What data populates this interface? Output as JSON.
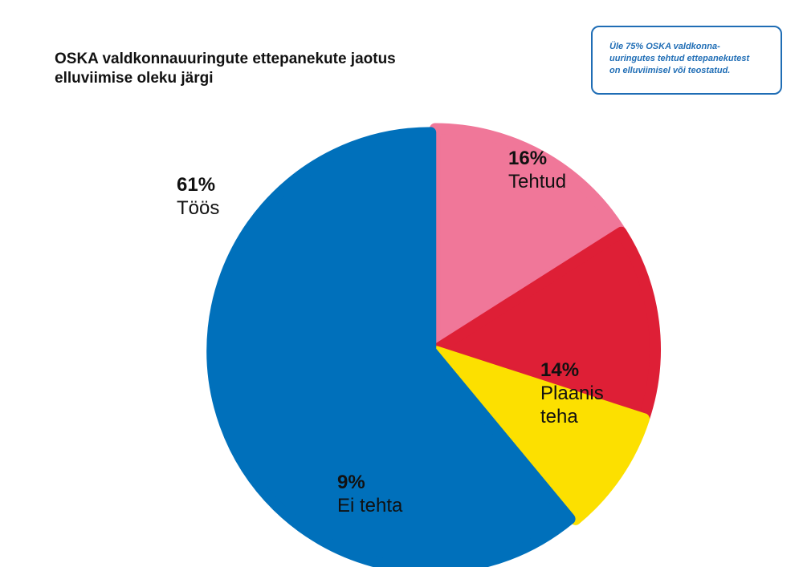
{
  "title_lines": [
    "OSKA valdkonnauuringute ettepanekute jaotus",
    "elluviimise oleku järgi"
  ],
  "note_lines": [
    "Üle 75% OSKA valdkonna-",
    "uuringutes tehtud ettepanekutest",
    "on elluviimisel või teostatud."
  ],
  "chart_data": {
    "type": "pie",
    "title": "OSKA valdkonnauuringute ettepanekute jaotus elluviimise oleku järgi",
    "slices": [
      {
        "name": "Tehtud",
        "value": 16,
        "label": "16%",
        "name_lines": [
          "Tehtud"
        ],
        "color": "#f07799"
      },
      {
        "name": "Plaanis teha",
        "value": 14,
        "label": "14%",
        "name_lines": [
          "Plaanis",
          "teha"
        ],
        "color": "#de1f36"
      },
      {
        "name": "Ei tehta",
        "value": 9,
        "label": "9%",
        "name_lines": [
          "Ei tehta"
        ],
        "color": "#fce000"
      },
      {
        "name": "Töös",
        "value": 61,
        "label": "61%",
        "name_lines": [
          "Töös"
        ],
        "color": "#0070bb"
      }
    ],
    "start": "12 o'clock",
    "direction": "clockwise",
    "legend": "none"
  }
}
